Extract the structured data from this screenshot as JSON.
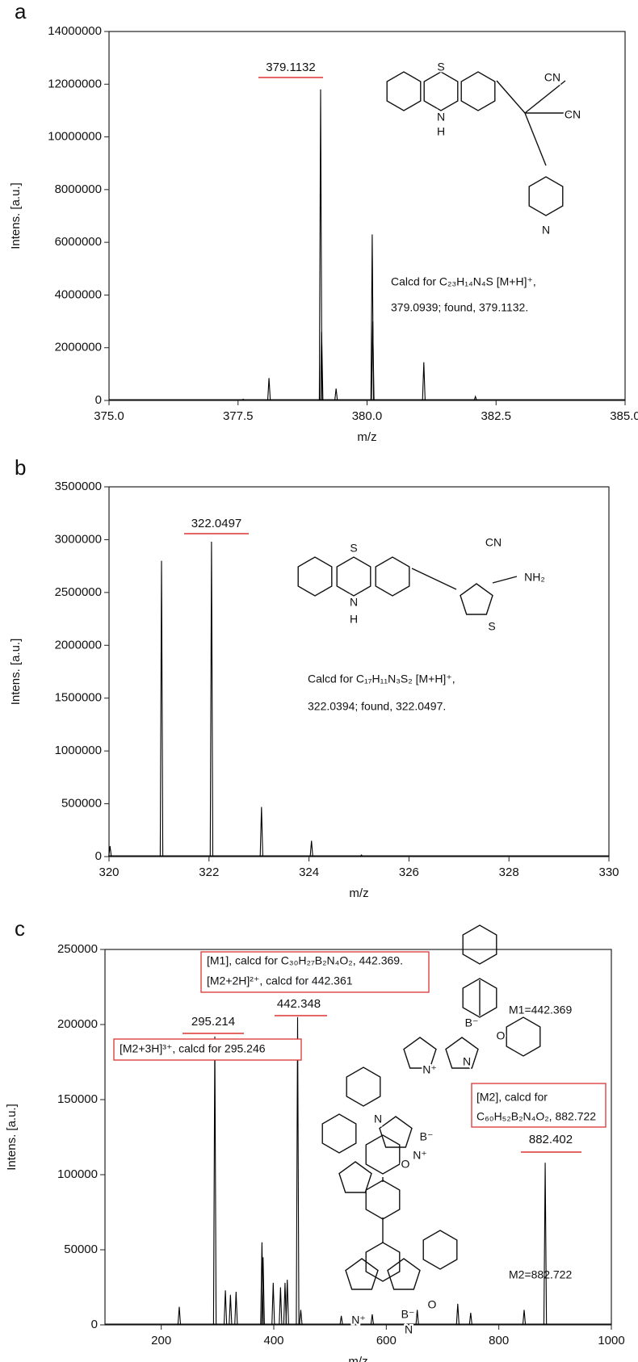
{
  "chart_data": [
    {
      "type": "spectrum",
      "panel_label": "a",
      "x_label": "m/z",
      "y_label": "Intens. [a.u.]",
      "color": "#000000",
      "xlim": [
        375,
        385
      ],
      "xticks": [
        {
          "value": 375,
          "label": "375.0"
        },
        {
          "value": 377.5,
          "label": "377.5"
        },
        {
          "value": 380,
          "label": "380.0"
        },
        {
          "value": 382.5,
          "label": "382.5"
        },
        {
          "value": 385,
          "label": "385.0"
        }
      ],
      "ylim": [
        0,
        14000000
      ],
      "yticks": [
        0,
        2000000,
        4000000,
        6000000,
        8000000,
        10000000,
        12000000,
        14000000
      ],
      "x": [
        377.6,
        378.1,
        379.1,
        379.12,
        379.4,
        380.1,
        380.11,
        381.1,
        382.1
      ],
      "values": [
        50000,
        850000,
        11800000,
        2600000,
        450000,
        6300000,
        3000000,
        1450000,
        150000
      ],
      "annotations": [
        "379.1132",
        "Calcd for C₂₃H₁₄N₄S [M+H]⁺,",
        "379.0939; found, 379.1132."
      ],
      "structure_labels": [
        "S",
        "N",
        "H",
        "CN",
        "CN",
        "N"
      ]
    },
    {
      "type": "spectrum",
      "panel_label": "b",
      "x_label": "m/z",
      "y_label": "Intens. [a.u.]",
      "color": "#000000",
      "xlim": [
        320,
        330
      ],
      "xticks": [
        320,
        322,
        324,
        326,
        328,
        330
      ],
      "ylim": [
        0,
        3500000
      ],
      "yticks": [
        0,
        500000,
        1000000,
        1500000,
        2000000,
        2500000,
        3000000,
        3500000
      ],
      "x": [
        320.02,
        321.05,
        322.05,
        323.05,
        324.05,
        325.05
      ],
      "values": [
        100000,
        2800000,
        2980000,
        470000,
        150000,
        15000
      ],
      "annotations": [
        "322.0497",
        "Calcd for C₁₇H₁₁N₃S₂ [M+H]⁺,",
        "322.0394; found, 322.0497."
      ],
      "structure_labels": [
        "S",
        "N",
        "H",
        "CN",
        "NH₂",
        "S"
      ]
    },
    {
      "type": "spectrum",
      "panel_label": "c",
      "x_label": "m/z",
      "y_label": "Intens. [a.u.]",
      "color": "#000000",
      "xlim": [
        100,
        1000
      ],
      "xticks": [
        200,
        400,
        600,
        800,
        1000
      ],
      "ylim": [
        0,
        250000
      ],
      "yticks": [
        0,
        50000,
        100000,
        150000,
        200000,
        250000
      ],
      "x": [
        232,
        295.214,
        314,
        323,
        333,
        379,
        381,
        399,
        412,
        420,
        424,
        442.348,
        448,
        520,
        575,
        655,
        727,
        750,
        845,
        882.402
      ],
      "values": [
        12000,
        192000,
        23000,
        20000,
        22000,
        55000,
        45000,
        28000,
        25000,
        28000,
        30000,
        205000,
        10000,
        6000,
        7000,
        10000,
        14000,
        8000,
        10000,
        108000
      ],
      "annotations": [
        "[M1], calcd for C₃₀H₂₇B₂N₄O₂, 442.369.",
        "[M2+2H]²⁺, calcd for 442.361",
        "442.348",
        "295.214",
        "[M2+3H]³⁺, calcd for 295.246",
        "[M2], calcd for",
        "C₆₀H₅₂B₂N₄O₂, 882.722",
        "882.402",
        "M1=442.369",
        "M2=882.722"
      ],
      "structure_labels": [
        "N⁺",
        "B⁻",
        "N",
        "O",
        "N",
        "B⁻",
        "N⁺",
        "O",
        "N⁺",
        "B⁻",
        "N",
        "O"
      ]
    }
  ]
}
